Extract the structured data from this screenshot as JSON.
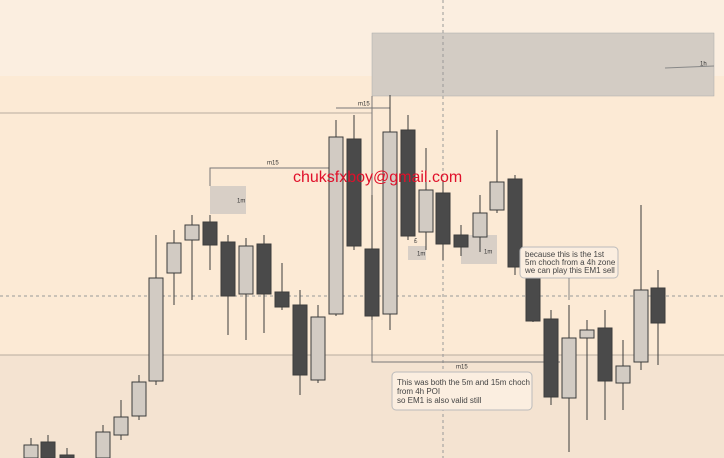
{
  "watermark": "chuksfxboy@gmail.com",
  "structure_labels": [
    "m15",
    "m15",
    "m15"
  ],
  "zone_labels": [
    "1m",
    "1m",
    "1m",
    "£"
  ],
  "timeframe_label": "1h",
  "notes": [
    {
      "lines": [
        "because this is the 1st",
        "5m choch from a 4h zone",
        "we can play this EM1 sell"
      ]
    },
    {
      "lines": [
        "This was both the 5m and 15m choch",
        "from 4h POI",
        "so EM1 is also valid still"
      ]
    }
  ]
}
